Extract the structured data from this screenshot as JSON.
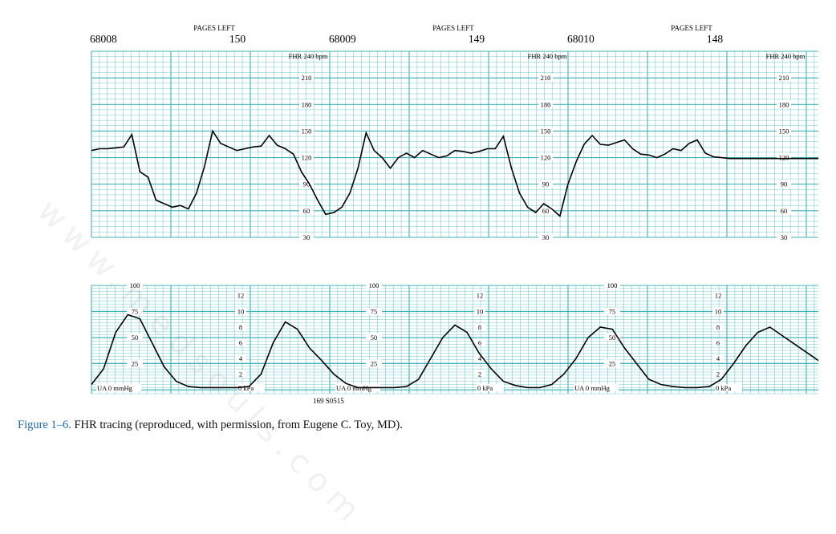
{
  "figure": {
    "label": "Figure 1–6.",
    "text": "FHR tracing (reproduced, with permission, from Eugene C. Toy, MD)."
  },
  "watermark": "www.medsouls.com",
  "colors": {
    "grid": "#3eb3b9",
    "trace": "#000000",
    "caption_label": "#1b6aa8"
  },
  "header": {
    "pages_left_label": "PAGES LEFT",
    "segments": [
      {
        "id": "68008",
        "pages_left": "150"
      },
      {
        "id": "68009",
        "pages_left": "149"
      },
      {
        "id": "68010",
        "pages_left": "148"
      }
    ]
  },
  "footnote_code": "169 S0515",
  "chart_data": [
    {
      "type": "line",
      "name": "fetal-heart-rate",
      "axis_title": "FHR 240 bpm",
      "y_ticks": [
        30,
        60,
        90,
        120,
        150,
        180,
        210
      ],
      "ylim": [
        30,
        240
      ],
      "grid": true,
      "x": [
        0,
        2,
        4,
        6,
        8,
        10,
        12,
        14,
        16,
        18,
        20,
        22,
        24,
        26,
        28,
        30,
        32,
        34,
        36,
        38,
        40,
        42,
        44,
        46,
        48,
        50,
        52,
        54,
        56,
        58,
        60,
        62,
        64,
        66,
        68,
        70,
        72,
        74,
        76,
        78,
        80,
        82,
        84,
        86,
        88,
        90,
        92,
        94,
        96,
        98,
        100,
        102,
        104,
        106,
        108,
        110,
        112,
        114,
        116,
        118,
        120,
        122,
        124,
        126,
        128,
        130,
        132,
        134,
        136,
        138,
        140,
        142,
        144,
        146,
        148,
        150,
        152,
        154,
        156,
        158,
        160,
        162,
        164,
        166,
        168,
        170,
        172,
        174,
        176,
        178,
        180
      ],
      "values": [
        128,
        130,
        130,
        131,
        132,
        146,
        104,
        98,
        72,
        68,
        64,
        66,
        62,
        80,
        110,
        150,
        136,
        132,
        128,
        130,
        132,
        133,
        145,
        134,
        130,
        124,
        104,
        90,
        72,
        56,
        58,
        64,
        80,
        108,
        148,
        128,
        120,
        108,
        120,
        125,
        120,
        128,
        124,
        120,
        122,
        128,
        127,
        125,
        127,
        130,
        130,
        144,
        108,
        80,
        64,
        58,
        68,
        62,
        54,
        90,
        115,
        135,
        145,
        135,
        134,
        137,
        140,
        130,
        124,
        123,
        120,
        124,
        130,
        128,
        136,
        140,
        125,
        121,
        120,
        119,
        119,
        119,
        119,
        119,
        119,
        119,
        119,
        119,
        119,
        119,
        119
      ]
    },
    {
      "type": "line",
      "name": "uterine-activity",
      "left_scale_label": "UA 0 mmHg",
      "left_ticks": [
        25,
        50,
        75,
        100
      ],
      "right_scale_label": "0 kPa",
      "right_ticks": [
        2,
        4,
        6,
        8,
        10,
        12
      ],
      "ylim": [
        0,
        100
      ],
      "grid": true,
      "x": [
        0,
        3,
        6,
        9,
        12,
        15,
        18,
        21,
        24,
        27,
        30,
        33,
        36,
        39,
        42,
        45,
        48,
        51,
        54,
        57,
        60,
        63,
        66,
        69,
        72,
        75,
        78,
        81,
        84,
        87,
        90,
        93,
        96,
        99,
        102,
        105,
        108,
        111,
        114,
        117,
        120,
        123,
        126,
        129,
        132,
        135,
        138,
        141,
        144,
        147,
        150,
        153,
        156,
        159,
        162,
        165,
        168,
        171,
        174,
        177,
        180
      ],
      "values": [
        5,
        20,
        55,
        72,
        68,
        45,
        22,
        8,
        3,
        2,
        2,
        2,
        2,
        3,
        15,
        45,
        65,
        58,
        40,
        28,
        15,
        6,
        2,
        2,
        2,
        2,
        3,
        10,
        30,
        50,
        62,
        55,
        35,
        20,
        8,
        4,
        2,
        2,
        5,
        15,
        30,
        50,
        60,
        58,
        40,
        25,
        10,
        5,
        3,
        2,
        2,
        3,
        10,
        25,
        42,
        55,
        60,
        52,
        44,
        36,
        28
      ]
    }
  ]
}
